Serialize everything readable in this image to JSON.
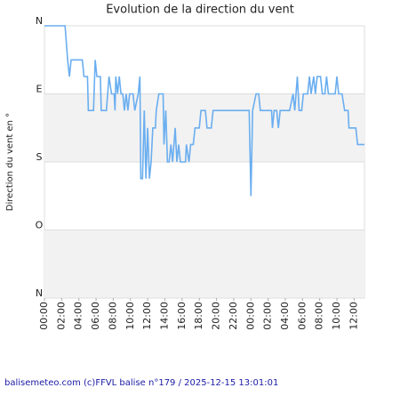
{
  "chart_data": {
    "type": "line",
    "title": "Evolution de la direction du vent",
    "y_label": "Direction du vent en °",
    "footer": "balisemeteo.com (c)FFVL balise n°179 / 2025-12-15 13:01:01",
    "y_reversed": true,
    "grid": true,
    "xlim": [
      0,
      37.2
    ],
    "ylim": [
      0,
      360
    ],
    "yticks": [
      {
        "value": 0,
        "label": "N"
      },
      {
        "value": 90,
        "label": "E"
      },
      {
        "value": 180,
        "label": "S"
      },
      {
        "value": 270,
        "label": "O"
      },
      {
        "value": 360,
        "label": "N"
      }
    ],
    "xticks": [
      {
        "value": 0,
        "label": "00:00"
      },
      {
        "value": 2,
        "label": "02:00"
      },
      {
        "value": 4,
        "label": "04:00"
      },
      {
        "value": 6,
        "label": "06:00"
      },
      {
        "value": 8,
        "label": "08:00"
      },
      {
        "value": 10,
        "label": "10:00"
      },
      {
        "value": 12,
        "label": "12:00"
      },
      {
        "value": 14,
        "label": "14:00"
      },
      {
        "value": 16,
        "label": "16:00"
      },
      {
        "value": 18,
        "label": "18:00"
      },
      {
        "value": 20,
        "label": "20:00"
      },
      {
        "value": 22,
        "label": "22:00"
      },
      {
        "value": 24,
        "label": "00:00"
      },
      {
        "value": 26,
        "label": "02:00"
      },
      {
        "value": 28,
        "label": "04:00"
      },
      {
        "value": 30,
        "label": "06:00"
      },
      {
        "value": 32,
        "label": "08:00"
      },
      {
        "value": 34,
        "label": "10:00"
      },
      {
        "value": 36,
        "label": "12:00"
      }
    ],
    "series": [
      {
        "color": "#6aaef0",
        "x": [
          0,
          2.4,
          2.7,
          2.9,
          3.1,
          4.4,
          4.6,
          5.0,
          5.1,
          5.7,
          5.9,
          6.1,
          6.5,
          6.6,
          7.2,
          7.5,
          7.8,
          8.1,
          8.2,
          8.3,
          8.5,
          8.7,
          8.9,
          9.1,
          9.3,
          9.5,
          9.7,
          9.9,
          10.3,
          10.5,
          10.9,
          11.1,
          11.2,
          11.4,
          11.6,
          11.8,
          12.0,
          12.2,
          12.4,
          12.6,
          12.9,
          13.0,
          13.3,
          13.8,
          13.9,
          14.1,
          14.3,
          14.5,
          14.7,
          14.9,
          15.2,
          15.4,
          15.6,
          15.8,
          16.4,
          16.5,
          16.8,
          17.0,
          17.3,
          17.5,
          18.0,
          18.2,
          18.7,
          18.9,
          19.4,
          19.6,
          23.8,
          24.0,
          24.2,
          24.6,
          24.9,
          25.1,
          26.4,
          26.5,
          26.7,
          27.0,
          27.2,
          27.4,
          28.5,
          28.9,
          29.1,
          29.4,
          29.6,
          29.9,
          30.1,
          30.6,
          30.8,
          31.0,
          31.3,
          31.5,
          31.7,
          32.1,
          32.3,
          32.6,
          32.8,
          33.0,
          33.8,
          34.0,
          34.2,
          34.6,
          34.9,
          35.3,
          35.4,
          36.2,
          36.4,
          37.2
        ],
        "values": [
          0,
          0,
          45,
          67,
          45,
          45,
          67,
          67,
          112,
          112,
          45,
          67,
          67,
          112,
          112,
          67,
          90,
          90,
          112,
          67,
          90,
          67,
          90,
          90,
          112,
          90,
          112,
          90,
          90,
          112,
          90,
          67,
          202,
          202,
          112,
          202,
          135,
          202,
          180,
          135,
          135,
          112,
          90,
          90,
          157,
          112,
          180,
          180,
          157,
          180,
          135,
          180,
          157,
          180,
          180,
          157,
          180,
          157,
          157,
          135,
          135,
          112,
          112,
          135,
          135,
          112,
          112,
          225,
          112,
          90,
          90,
          112,
          112,
          135,
          112,
          112,
          135,
          112,
          112,
          90,
          112,
          67,
          112,
          112,
          90,
          90,
          67,
          90,
          67,
          90,
          67,
          67,
          90,
          90,
          67,
          90,
          90,
          67,
          90,
          90,
          112,
          112,
          135,
          135,
          157,
          157
        ]
      }
    ]
  }
}
